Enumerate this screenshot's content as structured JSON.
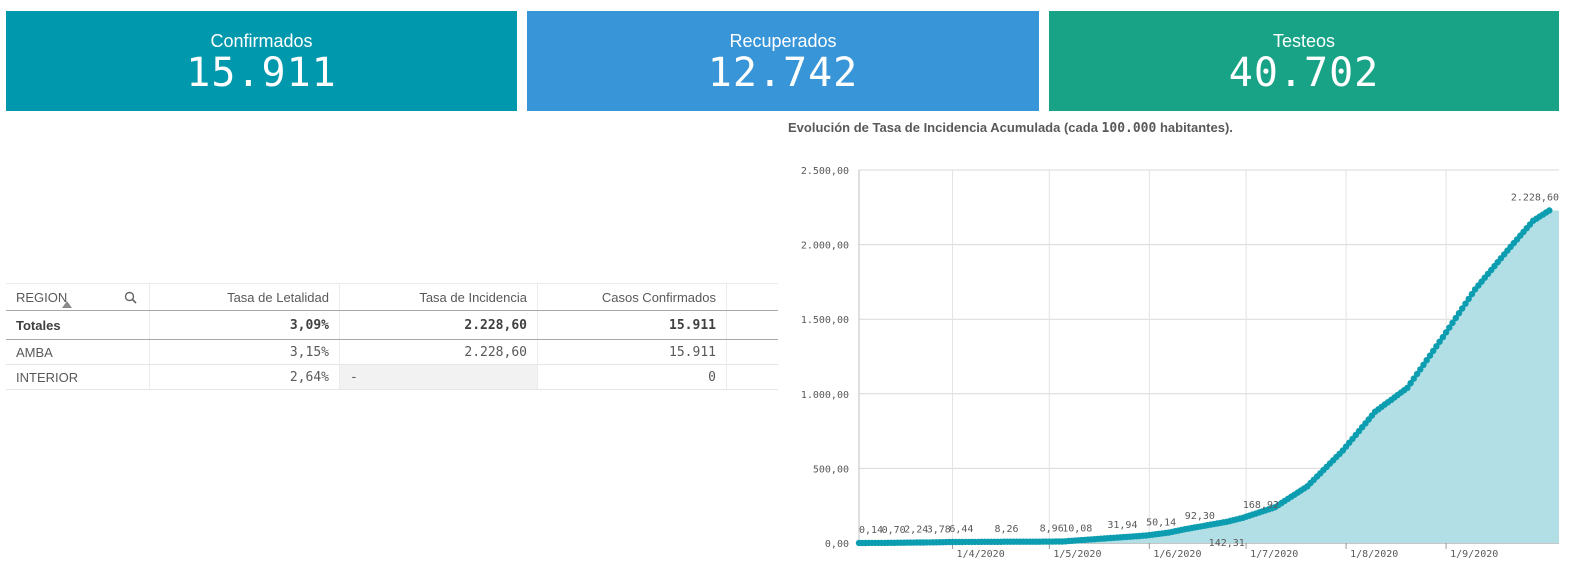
{
  "kpis": [
    {
      "label": "Confirmados",
      "value": "15.911",
      "color": "#0098ad"
    },
    {
      "label": "Recuperados",
      "value": "12.742",
      "color": "#3795d8"
    },
    {
      "label": "Testeos",
      "value": "40.702",
      "color": "#18a386"
    }
  ],
  "table": {
    "headers": [
      "REGION",
      "Tasa de Letalidad",
      "Tasa de Incidencia",
      "Casos Confirmados"
    ],
    "totals": [
      "Totales",
      "3,09%",
      "2.228,60",
      "15.911"
    ],
    "rows": [
      [
        "AMBA",
        "3,15%",
        "2.228,60",
        "15.911"
      ],
      [
        "INTERIOR",
        "2,64%",
        "-",
        "0"
      ]
    ]
  },
  "chart_title": {
    "prefix": "Evolución de Tasa de Incidencia Acumulada (cada ",
    "number": "100.000",
    "suffix": " habitantes)."
  },
  "chart_data": {
    "type": "area",
    "series_color": "#0c9db0",
    "fill_color": "#b2dfe5",
    "ylim": [
      0,
      2500
    ],
    "y_ticks": [
      {
        "value": 0,
        "label": "0,00"
      },
      {
        "value": 500,
        "label": "500,00"
      },
      {
        "value": 1000,
        "label": "1.000,00"
      },
      {
        "value": 1500,
        "label": "1.500,00"
      },
      {
        "value": 2000,
        "label": "2.000,00"
      },
      {
        "value": 2500,
        "label": "2.500,00"
      }
    ],
    "x_ticks": [
      "1/4/2020",
      "1/5/2020",
      "1/6/2020",
      "1/7/2020",
      "1/8/2020",
      "1/9/2020"
    ],
    "points": [
      [
        "2020-03-03",
        0.14
      ],
      [
        "2020-03-10",
        0.7
      ],
      [
        "2020-03-17",
        2.24
      ],
      [
        "2020-03-24",
        3.78
      ],
      [
        "2020-03-31",
        6.44
      ],
      [
        "2020-04-14",
        8.26
      ],
      [
        "2020-04-28",
        8.96
      ],
      [
        "2020-05-05",
        10.08
      ],
      [
        "2020-05-19",
        31.94
      ],
      [
        "2020-05-31",
        50.14
      ],
      [
        "2020-06-07",
        70
      ],
      [
        "2020-06-12",
        92.3
      ],
      [
        "2020-06-25",
        142.31
      ],
      [
        "2020-06-30",
        168.92
      ],
      [
        "2020-07-10",
        240
      ],
      [
        "2020-07-20",
        380
      ],
      [
        "2020-07-31",
        620
      ],
      [
        "2020-08-10",
        880
      ],
      [
        "2020-08-20",
        1040
      ],
      [
        "2020-08-31",
        1380
      ],
      [
        "2020-09-10",
        1700
      ],
      [
        "2020-09-20",
        1960
      ],
      [
        "2020-09-28",
        2160
      ],
      [
        "2020-10-03",
        2228.6
      ]
    ],
    "data_labels": [
      {
        "date": "2020-03-03",
        "label": "0,14",
        "pos": "above"
      },
      {
        "date": "2020-03-10",
        "label": "0,70",
        "pos": "above"
      },
      {
        "date": "2020-03-17",
        "label": "2,24",
        "pos": "above"
      },
      {
        "date": "2020-03-24",
        "label": "3,78",
        "pos": "above"
      },
      {
        "date": "2020-03-31",
        "label": "6,44",
        "pos": "above"
      },
      {
        "date": "2020-04-14",
        "label": "8,26",
        "pos": "above"
      },
      {
        "date": "2020-04-28",
        "label": "8,96",
        "pos": "above"
      },
      {
        "date": "2020-05-05",
        "label": "10,08",
        "pos": "above"
      },
      {
        "date": "2020-05-19",
        "label": "31,94",
        "pos": "above"
      },
      {
        "date": "2020-05-31",
        "label": "50,14",
        "pos": "above"
      },
      {
        "date": "2020-06-12",
        "label": "92,30",
        "pos": "above"
      },
      {
        "date": "2020-06-30",
        "label": "168,92",
        "pos": "above"
      },
      {
        "date": "2020-06-25",
        "label": "142,31",
        "pos": "below"
      },
      {
        "date": "2020-10-03",
        "label": "2.228,60",
        "pos": "above"
      }
    ]
  }
}
